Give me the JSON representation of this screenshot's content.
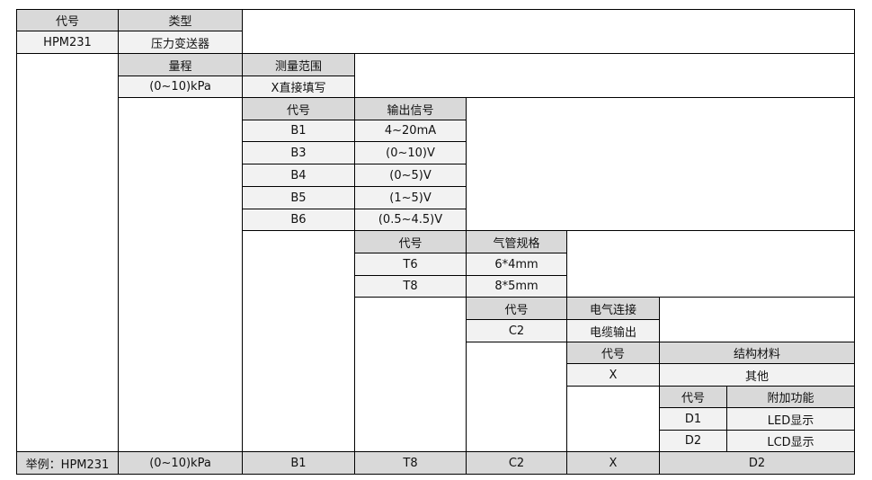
{
  "model": {
    "code_header": "代号",
    "type_header": "类型",
    "code": "HPM231",
    "type": "压力变送器"
  },
  "range": {
    "header": "量程",
    "measure_header": "测量范围",
    "value": "(0~10)kPa",
    "measure_value": "X直接填写"
  },
  "output": {
    "code_header": "代号",
    "header": "输出信号",
    "rows": [
      {
        "code": "B1",
        "value": "4~20mA"
      },
      {
        "code": "B3",
        "value": "(0~10)V"
      },
      {
        "code": "B4",
        "value": "(0~5)V"
      },
      {
        "code": "B5",
        "value": "(1~5)V"
      },
      {
        "code": "B6",
        "value": "(0.5~4.5)V"
      }
    ]
  },
  "tube": {
    "code_header": "代号",
    "header": "气管规格",
    "rows": [
      {
        "code": "T6",
        "value": "6*4mm"
      },
      {
        "code": "T8",
        "value": "8*5mm"
      }
    ]
  },
  "electrical": {
    "code_header": "代号",
    "header": "电气连接",
    "rows": [
      {
        "code": "C2",
        "value": "电缆输出"
      }
    ]
  },
  "material": {
    "code_header": "代号",
    "header": "结构材料",
    "rows": [
      {
        "code": "X",
        "value": "其他"
      }
    ]
  },
  "extra": {
    "code_header": "代号",
    "header": "附加功能",
    "rows": [
      {
        "code": "D1",
        "value": "LED显示"
      },
      {
        "code": "D2",
        "value": "LCD显示"
      }
    ]
  },
  "example": {
    "label": "举例：HPM231",
    "range": "(0~10)kPa",
    "output": "B1",
    "tube": "T8",
    "electrical": "C2",
    "material": "X",
    "extra": "D2"
  },
  "colors": {
    "header_bg": "#d9d9d9",
    "value_bg": "#f2f2f2",
    "border": "#000000"
  }
}
